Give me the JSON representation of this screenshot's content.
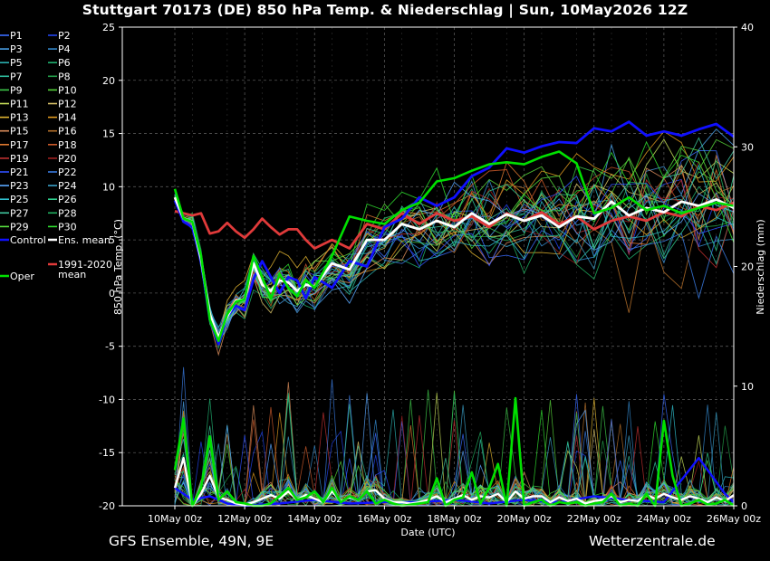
{
  "title": "Stuttgart 70173 (DE)  850 hPa Temp. & Niederschlag | Sun, 10May2026 12Z",
  "footer_left": "GFS Ensemble, 49N, 9E",
  "footer_right": "Wetterzentrale.de",
  "chart_data": {
    "type": "line",
    "xlabel": "Date (UTC)",
    "ylabel": "850 hPa Temp. (°C)",
    "y2label": "Niederschlag (mm)",
    "xlim": [
      0,
      16
    ],
    "ylim": [
      -20,
      25
    ],
    "y2lim": [
      0,
      40
    ],
    "grid": true,
    "x_ticks": [
      {
        "x": 0,
        "label": "10May 00z"
      },
      {
        "x": 2,
        "label": "12May 00z"
      },
      {
        "x": 4,
        "label": "14May 00z"
      },
      {
        "x": 6,
        "label": "16May 00z"
      },
      {
        "x": 8,
        "label": "18May 00z"
      },
      {
        "x": 10,
        "label": "20May 00z"
      },
      {
        "x": 12,
        "label": "22May 00z"
      },
      {
        "x": 14,
        "label": "24May 00z"
      },
      {
        "x": 16,
        "label": "26May 00z"
      }
    ],
    "y_ticks": [
      "25",
      "20",
      "15",
      "10",
      "5",
      "0",
      "-5",
      "-10",
      "-15",
      "-20"
    ],
    "y2_ticks": [
      "40",
      "30",
      "20",
      "10",
      "0"
    ],
    "legend_placement": "left",
    "legend": [
      {
        "label": "P1",
        "color": "#3a6cff"
      },
      {
        "label": "P2",
        "color": "#2244ee"
      },
      {
        "label": "P3",
        "color": "#4aa0e6"
      },
      {
        "label": "P4",
        "color": "#3388cc"
      },
      {
        "label": "P5",
        "color": "#2ab0b0"
      },
      {
        "label": "P6",
        "color": "#20b070"
      },
      {
        "label": "P7",
        "color": "#2fbf9f"
      },
      {
        "label": "P8",
        "color": "#23a04a"
      },
      {
        "label": "P9",
        "color": "#3ec94a"
      },
      {
        "label": "P10",
        "color": "#56d23a"
      },
      {
        "label": "P11",
        "color": "#c8e05a"
      },
      {
        "label": "P12",
        "color": "#d9c46a"
      },
      {
        "label": "P13",
        "color": "#e0b430"
      },
      {
        "label": "P14",
        "color": "#e09a20"
      },
      {
        "label": "P15",
        "color": "#d98c5a"
      },
      {
        "label": "P16",
        "color": "#b5702a"
      },
      {
        "label": "P17",
        "color": "#e07a30"
      },
      {
        "label": "P18",
        "color": "#cc5a2a"
      },
      {
        "label": "P19",
        "color": "#c03030"
      },
      {
        "label": "P20",
        "color": "#a02020"
      },
      {
        "label": "P21",
        "color": "#3050ff"
      },
      {
        "label": "P22",
        "color": "#3a7ae0"
      },
      {
        "label": "P23",
        "color": "#5aa8ff"
      },
      {
        "label": "P24",
        "color": "#3aa0c8"
      },
      {
        "label": "P25",
        "color": "#30c0d0"
      },
      {
        "label": "P26",
        "color": "#30d090"
      },
      {
        "label": "P27",
        "color": "#40c8a0"
      },
      {
        "label": "P28",
        "color": "#20b060"
      },
      {
        "label": "P29",
        "color": "#58e040"
      },
      {
        "label": "P30",
        "color": "#30e030"
      },
      {
        "label": "Control",
        "color": "#1010ff"
      },
      {
        "label": "Ens. mean",
        "color": "#ffffff"
      },
      {
        "label": "Oper",
        "color": "#00e000"
      },
      {
        "label": "1991-2020 mean",
        "color": "#e03a3a"
      }
    ],
    "series": [
      {
        "name": "Control",
        "color": "#1010ff",
        "x": [
          0,
          0.25,
          0.5,
          0.75,
          1,
          1.25,
          1.5,
          1.75,
          2,
          2.25,
          2.5,
          2.75,
          3,
          3.25,
          3.5,
          3.75,
          4,
          4.5,
          5,
          5.5,
          6,
          6.5,
          7,
          7.5,
          8,
          8.5,
          9,
          9.5,
          10,
          10.5,
          11,
          11.5,
          12,
          12.5,
          13,
          13.5,
          14,
          14.5,
          15,
          15.5,
          16
        ],
        "y": [
          8.7,
          6.7,
          6.2,
          3,
          -2.5,
          -4.8,
          -2.2,
          -1.2,
          -1.6,
          1.3,
          3,
          1.5,
          0,
          1.5,
          1.2,
          -0.5,
          1.5,
          0.5,
          3,
          2.5,
          6.2,
          7,
          9,
          8.2,
          9,
          11,
          11.8,
          13.6,
          13.2,
          13.8,
          14.2,
          14.1,
          15.5,
          15.2,
          16.1,
          14.8,
          15.2,
          14.8,
          15.4,
          15.9,
          14.7
        ]
      },
      {
        "name": "Oper",
        "color": "#00e000",
        "x": [
          0,
          0.25,
          0.5,
          0.75,
          1,
          1.25,
          1.5,
          1.75,
          2,
          2.25,
          2.5,
          2.75,
          3,
          3.25,
          3.5,
          3.75,
          4,
          4.5,
          5,
          5.5,
          6,
          6.5,
          7,
          7.5,
          8,
          8.5,
          9,
          9.5,
          10,
          10.5,
          11,
          11.5,
          12,
          12.5,
          13,
          13.5,
          14,
          14.5,
          15,
          15.5,
          16
        ],
        "y": [
          9.8,
          7,
          6.7,
          3.5,
          -2.5,
          -4.5,
          -2,
          -0.8,
          -0.6,
          3.5,
          1.5,
          -0.5,
          1.8,
          0.5,
          -0.3,
          1.2,
          0.5,
          3.5,
          7.2,
          6.8,
          6.5,
          7.8,
          8.5,
          10.5,
          10.8,
          11.5,
          12.1,
          12.3,
          12.1,
          12.8,
          13.3,
          12.2,
          7.5,
          8,
          9,
          7.8,
          8.2,
          7.5,
          8,
          8.5,
          8.2
        ]
      },
      {
        "name": "Ens. mean",
        "color": "#ffffff",
        "x": [
          0,
          0.25,
          0.5,
          0.75,
          1,
          1.25,
          1.5,
          1.75,
          2,
          2.25,
          2.5,
          2.75,
          3,
          3.25,
          3.5,
          3.75,
          4,
          4.5,
          5,
          5.5,
          6,
          6.5,
          7,
          7.5,
          8,
          8.5,
          9,
          9.5,
          10,
          10.5,
          11,
          11.5,
          12,
          12.5,
          13,
          13.5,
          14,
          14.5,
          15,
          15.5,
          16
        ],
        "y": [
          9,
          7,
          6.7,
          3.2,
          -2,
          -4.2,
          -2.2,
          -0.7,
          -0.6,
          2.8,
          0.8,
          0.2,
          1.2,
          1,
          0.2,
          0.8,
          0.6,
          2.8,
          2.2,
          5,
          5,
          6.5,
          6,
          6.8,
          6.2,
          7.5,
          6.5,
          7.4,
          6.8,
          7.3,
          6.2,
          7.2,
          7,
          8.6,
          7.3,
          8,
          7.6,
          8.6,
          8.2,
          8.8,
          8
        ]
      },
      {
        "name": "1991-2020 mean",
        "color": "#e03a3a",
        "x": [
          0,
          0.25,
          0.5,
          0.75,
          1,
          1.25,
          1.5,
          1.75,
          2,
          2.25,
          2.5,
          2.75,
          3,
          3.25,
          3.5,
          3.75,
          4,
          4.5,
          5,
          5.5,
          6,
          6.5,
          7,
          7.5,
          8,
          8.5,
          9,
          9.5,
          10,
          10.5,
          11,
          11.5,
          12,
          12.5,
          13,
          13.5,
          14,
          14.5,
          15,
          15.5,
          16
        ],
        "y": [
          7.7,
          7.5,
          7.3,
          7.5,
          5.6,
          5.8,
          6.6,
          5.8,
          5.2,
          6,
          7,
          6.2,
          5.5,
          6,
          6,
          5,
          4.2,
          5,
          4.2,
          6.5,
          6,
          7.5,
          6.5,
          7.5,
          6.8,
          7.2,
          6.2,
          7.5,
          6.8,
          7.6,
          6.5,
          7.2,
          6,
          6.8,
          7.2,
          6.8,
          7.6,
          7.2,
          8.2,
          7.8,
          8.5
        ]
      }
    ],
    "precip_series": [
      {
        "name": "Oper",
        "color": "#00e000",
        "x": [
          0,
          0.25,
          0.5,
          0.75,
          1,
          1.25,
          1.5,
          1.75,
          2,
          2.25,
          2.5,
          2.75,
          3,
          3.25,
          3.5,
          3.75,
          4,
          4.25,
          4.5,
          4.75,
          5,
          5.25,
          5.5,
          5.75,
          6,
          6.25,
          6.5,
          6.75,
          7,
          7.25,
          7.5,
          7.75,
          8,
          8.25,
          8.5,
          8.75,
          9,
          9.25,
          9.5,
          9.75,
          10,
          10.25,
          10.5,
          10.75,
          11,
          11.25,
          11.5,
          11.75,
          12,
          12.25,
          12.5,
          12.75,
          13,
          13.25,
          13.5,
          13.75,
          14,
          14.25,
          14.5,
          14.75,
          15,
          15.25,
          15.5,
          15.75,
          16
        ],
        "y": [
          3,
          7.3,
          0,
          1.5,
          5.8,
          0.5,
          1.2,
          0.3,
          0.2,
          0,
          0,
          0.2,
          0.8,
          1.5,
          0.5,
          0.7,
          1.2,
          0.3,
          1.5,
          0.3,
          0.8,
          0.5,
          1.2,
          0.2,
          0.5,
          0.2,
          0,
          0.1,
          0.2,
          0.3,
          2.3,
          0,
          0.5,
          0.7,
          2.8,
          0.2,
          1.5,
          3.5,
          0,
          9,
          0,
          0.3,
          0.5,
          0,
          0.3,
          0.2,
          0.3,
          0,
          0.2,
          0.3,
          1,
          0,
          0.2,
          0,
          1,
          0,
          7.1,
          2.5,
          0,
          0.2,
          0.5,
          0.1,
          0.2,
          0.5,
          0
        ]
      },
      {
        "name": "Ens. mean",
        "color": "#ffffff",
        "x": [
          0,
          0.25,
          0.5,
          0.75,
          1,
          1.25,
          1.5,
          1.75,
          2,
          2.25,
          2.5,
          2.75,
          3,
          3.25,
          3.5,
          3.75,
          4,
          4.25,
          4.5,
          4.75,
          5,
          5.25,
          5.5,
          5.75,
          6,
          6.25,
          6.5,
          6.75,
          7,
          7.25,
          7.5,
          7.75,
          8,
          8.25,
          8.5,
          8.75,
          9,
          9.25,
          9.5,
          9.75,
          10,
          10.25,
          10.5,
          10.75,
          11,
          11.25,
          11.5,
          11.75,
          12,
          12.25,
          12.5,
          12.75,
          13,
          13.25,
          13.5,
          13.75,
          14,
          14.25,
          14.5,
          14.75,
          15,
          15.25,
          15.5,
          15.75,
          16
        ],
        "y": [
          1.5,
          4,
          0,
          1,
          2.5,
          0.7,
          0.5,
          0.2,
          0.1,
          0.3,
          0.6,
          0.9,
          0.6,
          1.2,
          0.5,
          0.9,
          0.6,
          0.3,
          1.2,
          0.4,
          0.7,
          0.5,
          1.2,
          1.3,
          0.6,
          0.3,
          0.3,
          0.2,
          0.3,
          0.5,
          0.8,
          0.3,
          0.6,
          0.9,
          0.5,
          0.8,
          0.7,
          1,
          0.3,
          1.2,
          0.6,
          0.8,
          0.8,
          0.3,
          0.7,
          0.4,
          0.6,
          0.2,
          0.4,
          0.5,
          0.8,
          0.3,
          0.5,
          0.4,
          0.9,
          0.6,
          1,
          0.7,
          0.5,
          0.8,
          0.6,
          0.3,
          0.7,
          0.4,
          0.9
        ]
      },
      {
        "name": "Control",
        "color": "#1010ff",
        "x": [
          0,
          0.5,
          1,
          1.5,
          2,
          3,
          4,
          5,
          6,
          7,
          8,
          9,
          10,
          11,
          12,
          13,
          14,
          15,
          15.75,
          16
        ],
        "y": [
          1.5,
          0.5,
          0.8,
          0.2,
          0,
          0.2,
          0.5,
          0.2,
          0.3,
          0.3,
          0.5,
          0.2,
          0.5,
          0.3,
          0.8,
          0.5,
          0.3,
          4,
          1,
          0.3
        ]
      }
    ]
  }
}
